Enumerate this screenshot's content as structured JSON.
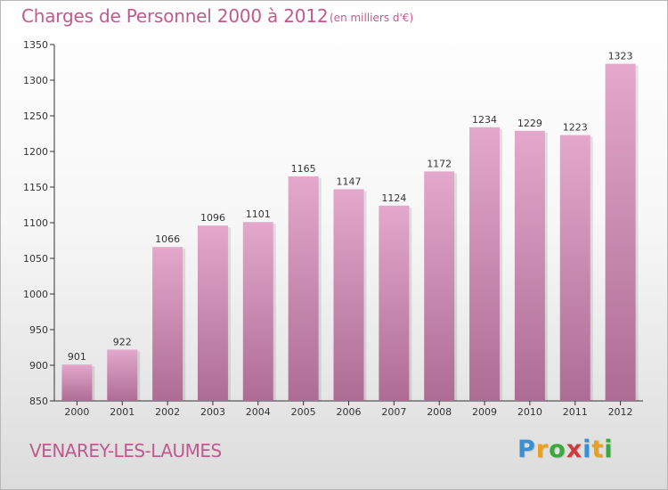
{
  "header": {
    "title": "Charges de Personnel 2000 à 2012",
    "subtitle": "(en milliers d'€)"
  },
  "footer": {
    "town": "VENAREY-LES-LAUMES",
    "logo_letters": [
      "P",
      "r",
      "o",
      "x",
      "i",
      "t",
      "i"
    ],
    "logo_colors": [
      "#3a8fd0",
      "#e8a020",
      "#3aa83a",
      "#d03a3a",
      "#3a8fd0",
      "#e8a020",
      "#3aa83a"
    ]
  },
  "colors": {
    "bar_top": "#e4a8cc",
    "bar_bottom": "#ad6c94",
    "title": "#c05a8e"
  },
  "chart_data": {
    "type": "bar",
    "title": "Charges de Personnel 2000 à 2012",
    "subtitle": "(en milliers d'€)",
    "categories": [
      "2000",
      "2001",
      "2002",
      "2003",
      "2004",
      "2005",
      "2006",
      "2007",
      "2008",
      "2009",
      "2010",
      "2011",
      "2012"
    ],
    "values": [
      901,
      922,
      1066,
      1096,
      1101,
      1165,
      1147,
      1124,
      1172,
      1234,
      1229,
      1223,
      1323
    ],
    "ylim": [
      850,
      1350
    ],
    "yticks": [
      850,
      900,
      950,
      1000,
      1050,
      1100,
      1150,
      1200,
      1250,
      1300,
      1350
    ],
    "grid": false,
    "xlabel": "",
    "ylabel": ""
  }
}
